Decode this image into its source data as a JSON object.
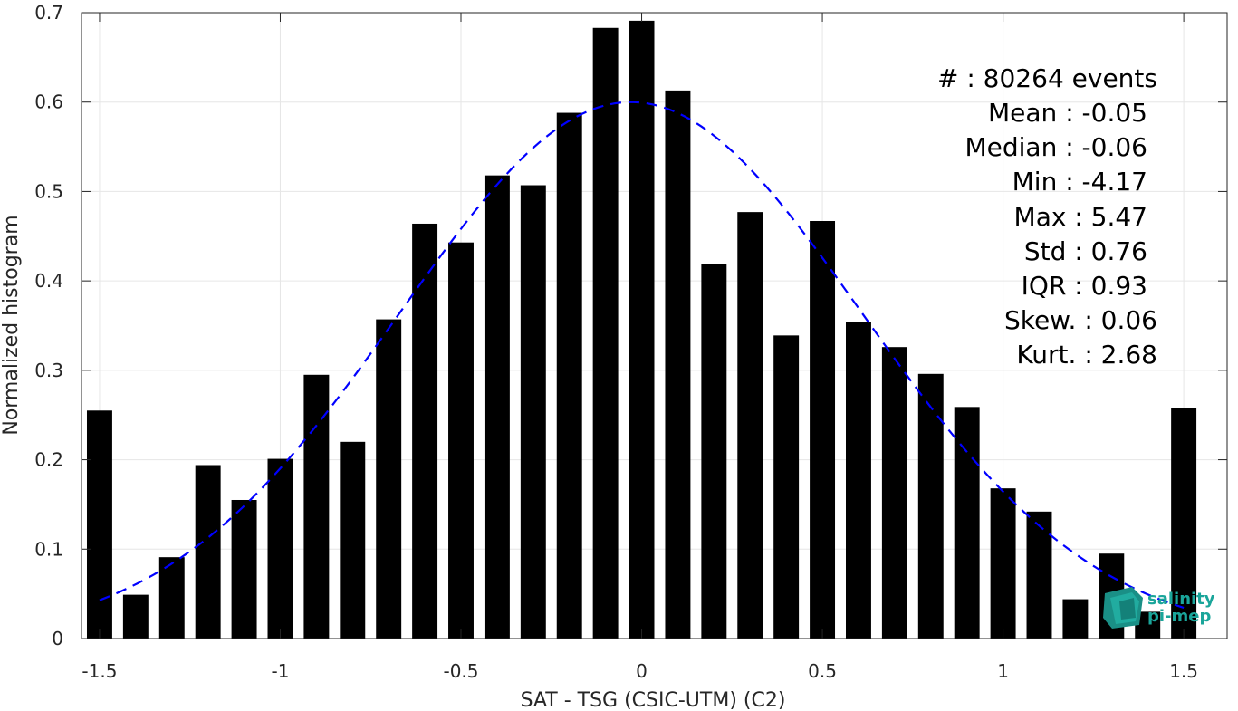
{
  "chart_data": {
    "type": "bar",
    "title": "",
    "xlabel": "SAT - TSG (CSIC-UTM) (C2)",
    "ylabel": "Normalized histogram",
    "xlim": [
      -1.55,
      1.62
    ],
    "ylim": [
      0,
      0.7
    ],
    "xticks": [
      -1.5,
      -1,
      -0.5,
      0,
      0.5,
      1,
      1.5
    ],
    "xtick_labels": [
      "-1.5",
      "-1",
      "-0.5",
      "0",
      "0.5",
      "1",
      "1.5"
    ],
    "yticks": [
      0,
      0.1,
      0.2,
      0.3,
      0.4,
      0.5,
      0.6,
      0.7
    ],
    "ytick_labels": [
      "0",
      "0.1",
      "0.2",
      "0.3",
      "0.4",
      "0.5",
      "0.6",
      "0.7"
    ],
    "grid": true,
    "bar_color": "#000000",
    "bar_width": 0.07,
    "bars": {
      "x": [
        -1.5,
        -1.4,
        -1.3,
        -1.2,
        -1.1,
        -1.0,
        -0.9,
        -0.8,
        -0.7,
        -0.6,
        -0.5,
        -0.4,
        -0.3,
        -0.2,
        -0.1,
        0.0,
        0.1,
        0.2,
        0.3,
        0.4,
        0.5,
        0.6,
        0.7,
        0.8,
        0.9,
        1.0,
        1.1,
        1.2,
        1.3,
        1.4,
        1.5
      ],
      "values": [
        0.255,
        0.049,
        0.091,
        0.194,
        0.155,
        0.201,
        0.295,
        0.22,
        0.357,
        0.464,
        0.443,
        0.518,
        0.507,
        0.588,
        0.683,
        0.691,
        0.613,
        0.419,
        0.477,
        0.339,
        0.467,
        0.354,
        0.326,
        0.296,
        0.259,
        0.168,
        0.142,
        0.044,
        0.095,
        0.03,
        0.258
      ]
    },
    "fit_curve": {
      "style": "dashed",
      "color": "#0000ff",
      "type": "gaussian",
      "peak": 0.6,
      "mean": -0.03,
      "sigma": 0.64,
      "x_range": [
        -1.5,
        1.5
      ]
    },
    "stats": [
      {
        "label": "#  : 80264 events"
      },
      {
        "label": "Mean : -0.05"
      },
      {
        "label": "Median : -0.06"
      },
      {
        "label": "Min : -4.17"
      },
      {
        "label": "Max : 5.47"
      },
      {
        "label": "Std : 0.76"
      },
      {
        "label": "IQR : 0.93"
      },
      {
        "label": "Skew. : 0.06"
      },
      {
        "label": "Kurt. : 2.68"
      }
    ]
  },
  "logo": {
    "line1": "salinity",
    "line2": "pi-mep",
    "color": "#1aa59a"
  }
}
